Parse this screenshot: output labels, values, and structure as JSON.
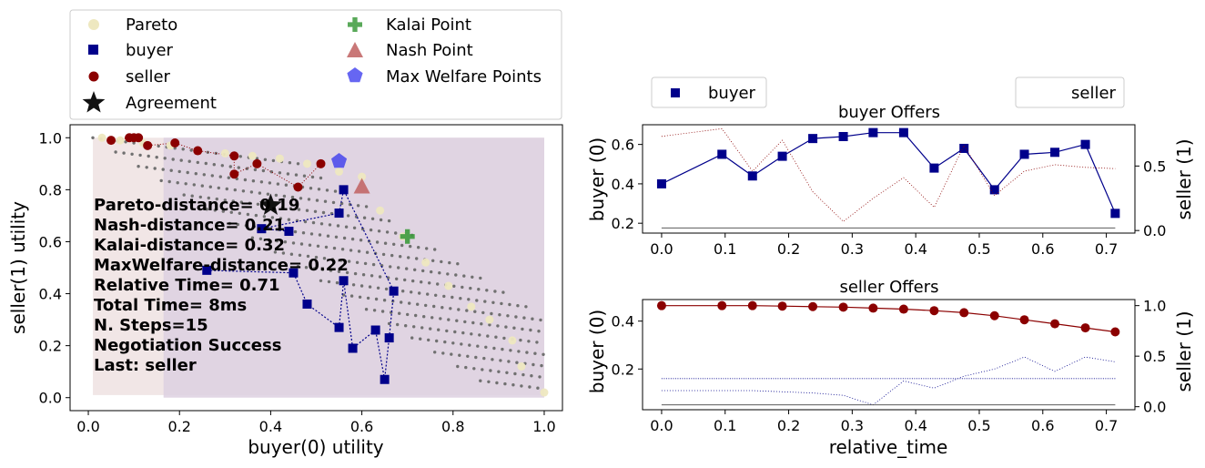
{
  "colors": {
    "pareto": "#eee8c0",
    "buyer": "#00008b",
    "seller": "#8b0000",
    "kalai": "#3c9a3c",
    "nash": "#c06060",
    "welfare": "#3333ee",
    "outcome_dots": "#707070",
    "region_buyer": "#eee0e0",
    "region_seller": "#ddd0e0"
  },
  "legend_left": {
    "pareto": "Pareto",
    "buyer": "buyer",
    "seller": "seller",
    "agreement": "Agreement",
    "kalai": "Kalai Point",
    "nash": "Nash Point",
    "welfare": "Max Welfare Points"
  },
  "info_lines": [
    "Pareto-distance= 0.19",
    "Nash-distance= 0.21",
    "Kalai-distance= 0.32",
    "MaxWelfare-distance= 0.22",
    "Relative Time= 0.71",
    "Total Time= 8ms",
    "N. Steps=15",
    "Negotiation Success",
    "Last: seller"
  ],
  "chart_data": [
    {
      "type": "scatter",
      "title": "",
      "xlabel": "buyer(0) utility",
      "ylabel": "seller(1) utility",
      "xlim": [
        -0.04,
        1.04
      ],
      "ylim": [
        -0.05,
        1.05
      ],
      "xticks": [
        "0.0",
        "0.2",
        "0.4",
        "0.6",
        "0.8",
        "1.0"
      ],
      "yticks": [
        "0.0",
        "0.2",
        "0.4",
        "0.6",
        "0.8",
        "1.0"
      ],
      "pareto": [
        [
          0.03,
          1.0
        ],
        [
          0.07,
          0.99
        ],
        [
          0.12,
          0.98
        ],
        [
          0.18,
          0.97
        ],
        [
          0.24,
          0.95
        ],
        [
          0.3,
          0.94
        ],
        [
          0.36,
          0.93
        ],
        [
          0.42,
          0.92
        ],
        [
          0.48,
          0.9
        ],
        [
          0.55,
          0.87
        ],
        [
          0.6,
          0.85
        ],
        [
          0.64,
          0.72
        ],
        [
          0.69,
          0.62
        ],
        [
          0.74,
          0.52
        ],
        [
          0.79,
          0.43
        ],
        [
          0.84,
          0.35
        ],
        [
          0.88,
          0.3
        ],
        [
          0.93,
          0.22
        ],
        [
          0.95,
          0.12
        ],
        [
          1.0,
          0.02
        ]
      ],
      "buyer_offers": [
        [
          0.26,
          0.49
        ],
        [
          0.45,
          0.48
        ],
        [
          0.48,
          0.36
        ],
        [
          0.55,
          0.27
        ],
        [
          0.56,
          0.45
        ],
        [
          0.58,
          0.19
        ],
        [
          0.63,
          0.26
        ],
        [
          0.65,
          0.07
        ],
        [
          0.66,
          0.23
        ],
        [
          0.67,
          0.41
        ],
        [
          0.56,
          0.8
        ],
        [
          0.55,
          0.71
        ],
        [
          0.38,
          0.65
        ],
        [
          0.44,
          0.64
        ]
      ],
      "seller_offers": [
        [
          0.05,
          0.99
        ],
        [
          0.09,
          1.0
        ],
        [
          0.1,
          1.0
        ],
        [
          0.11,
          1.0
        ],
        [
          0.13,
          0.97
        ],
        [
          0.19,
          0.98
        ],
        [
          0.24,
          0.95
        ],
        [
          0.32,
          0.93
        ],
        [
          0.32,
          0.86
        ],
        [
          0.37,
          0.9
        ],
        [
          0.46,
          0.81
        ],
        [
          0.51,
          0.9
        ]
      ],
      "agreement": [
        0.4,
        0.74
      ],
      "kalai": [
        0.7,
        0.62
      ],
      "nash": [
        0.6,
        0.81
      ],
      "max_welfare": [
        [
          0.55,
          0.91
        ]
      ],
      "grid": false,
      "legend": "top, outside"
    },
    {
      "type": "line",
      "title": "buyer Offers",
      "xlabel": "",
      "ylabel": "buyer (0)",
      "ylabel_right": "seller (1)",
      "ylim": [
        0.15,
        0.7
      ],
      "ylim_right": [
        -0.02,
        0.82
      ],
      "xticks": [
        "0.0",
        "0.1",
        "0.2",
        "0.3",
        "0.4",
        "0.5",
        "0.6",
        "0.7"
      ],
      "yticks": [
        "0.2",
        "0.4",
        "0.6"
      ],
      "yticks_right": [
        "0.0",
        "0.5"
      ],
      "x": [
        0.0,
        0.095,
        0.143,
        0.19,
        0.238,
        0.286,
        0.333,
        0.381,
        0.429,
        0.476,
        0.524,
        0.571,
        0.619,
        0.667,
        0.714
      ],
      "series": [
        {
          "name": "buyer",
          "axis": "left",
          "values": [
            0.4,
            0.55,
            0.44,
            0.54,
            0.63,
            0.64,
            0.66,
            0.66,
            0.48,
            0.58,
            0.37,
            0.55,
            0.56,
            0.6,
            0.25
          ]
        },
        {
          "name": "",
          "axis": "right",
          "values": [
            0.73,
            0.79,
            0.46,
            0.7,
            0.3,
            0.07,
            0.25,
            0.41,
            0.18,
            0.66,
            0.27,
            0.46,
            0.51,
            0.49,
            0.48
          ]
        },
        {
          "name": "",
          "axis": "right",
          "values": [
            0.02,
            0.02,
            0.02,
            0.02,
            0.02,
            0.02,
            0.02,
            0.02,
            0.02,
            0.02,
            0.02,
            0.02,
            0.02,
            0.02,
            0.02
          ]
        }
      ],
      "legend_left": "buyer",
      "legend_right": "seller"
    },
    {
      "type": "line",
      "title": "seller Offers",
      "xlabel": "relative_time",
      "ylabel": "buyer (0)",
      "ylabel_right": "seller (1)",
      "ylim": [
        0.03,
        0.49
      ],
      "ylim_right": [
        -0.03,
        1.06
      ],
      "xticks": [
        "0.0",
        "0.1",
        "0.2",
        "0.3",
        "0.4",
        "0.5",
        "0.6",
        "0.7"
      ],
      "yticks": [
        "0.2",
        "0.4"
      ],
      "yticks_right": [
        "0.0",
        "0.5",
        "1.0"
      ],
      "x": [
        0.0,
        0.095,
        0.143,
        0.19,
        0.238,
        0.286,
        0.333,
        0.381,
        0.429,
        0.476,
        0.524,
        0.571,
        0.619,
        0.667,
        0.714
      ],
      "series": [
        {
          "name": "seller",
          "axis": "right",
          "values": [
            1.0,
            1.0,
            1.0,
            0.995,
            0.99,
            0.985,
            0.975,
            0.965,
            0.95,
            0.93,
            0.9,
            0.86,
            0.82,
            0.78,
            0.74
          ]
        },
        {
          "name": "",
          "axis": "left",
          "values": [
            0.11,
            0.11,
            0.11,
            0.105,
            0.1,
            0.09,
            0.05,
            0.15,
            0.12,
            0.17,
            0.2,
            0.25,
            0.19,
            0.25,
            0.23
          ]
        },
        {
          "name": "",
          "axis": "left",
          "values": [
            0.16,
            0.16,
            0.16,
            0.16,
            0.16,
            0.16,
            0.16,
            0.16,
            0.16,
            0.16,
            0.16,
            0.16,
            0.16,
            0.16,
            0.16
          ]
        },
        {
          "name": "",
          "axis": "left",
          "values": [
            0.05,
            0.05,
            0.05,
            0.05,
            0.05,
            0.05,
            0.05,
            0.05,
            0.05,
            0.05,
            0.05,
            0.05,
            0.05,
            0.05,
            0.05
          ]
        }
      ]
    }
  ]
}
